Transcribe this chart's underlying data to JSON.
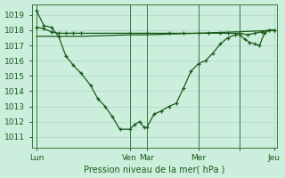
{
  "bg_color": "#cceedd",
  "grid_color": "#b8ddd0",
  "line_color": "#1a5c1a",
  "title": "Pression niveau de la mer( hPa )",
  "ylim": [
    1010.3,
    1019.7
  ],
  "yticks": [
    1011,
    1012,
    1013,
    1014,
    1015,
    1016,
    1017,
    1018,
    1019
  ],
  "xlim": [
    0,
    100
  ],
  "day_positions": [
    2,
    40,
    47,
    68,
    85,
    99
  ],
  "day_labels": [
    "Lun",
    "Ven",
    "Mar",
    "Mer",
    "",
    "Jeu"
  ],
  "vline_positions": [
    2,
    40,
    47,
    68,
    85
  ],
  "line1_x": [
    2,
    5,
    8,
    11,
    14,
    17,
    20,
    24,
    27,
    30,
    33,
    36,
    40,
    42,
    44,
    46,
    47,
    50,
    53,
    56,
    59,
    62,
    65,
    68,
    71,
    74,
    77,
    80,
    83,
    85,
    87,
    89,
    91,
    93,
    95,
    97,
    99
  ],
  "line1_y": [
    1019.3,
    1018.3,
    1018.2,
    1017.6,
    1016.3,
    1015.7,
    1015.2,
    1014.4,
    1013.5,
    1013.0,
    1012.3,
    1011.5,
    1011.5,
    1011.8,
    1012.0,
    1011.6,
    1011.6,
    1012.5,
    1012.7,
    1013.0,
    1013.2,
    1014.2,
    1015.3,
    1015.8,
    1016.0,
    1016.5,
    1017.1,
    1017.5,
    1017.7,
    1017.7,
    1017.4,
    1017.2,
    1017.1,
    1017.0,
    1017.8,
    1018.0,
    1018.0
  ],
  "line2_x": [
    2,
    5,
    8,
    11,
    14,
    17,
    20,
    40,
    47,
    56,
    62,
    68,
    72,
    77,
    80,
    85,
    88,
    91,
    94,
    97,
    99
  ],
  "line2_y": [
    1018.2,
    1018.1,
    1017.9,
    1017.8,
    1017.8,
    1017.8,
    1017.8,
    1017.8,
    1017.8,
    1017.8,
    1017.8,
    1017.8,
    1017.8,
    1017.8,
    1017.8,
    1017.8,
    1017.7,
    1017.8,
    1017.9,
    1018.0,
    1018.0
  ],
  "line3_x": [
    2,
    20,
    40,
    47,
    68,
    85,
    99
  ],
  "line3_y": [
    1017.6,
    1017.6,
    1017.7,
    1017.7,
    1017.8,
    1017.9,
    1018.0
  ]
}
